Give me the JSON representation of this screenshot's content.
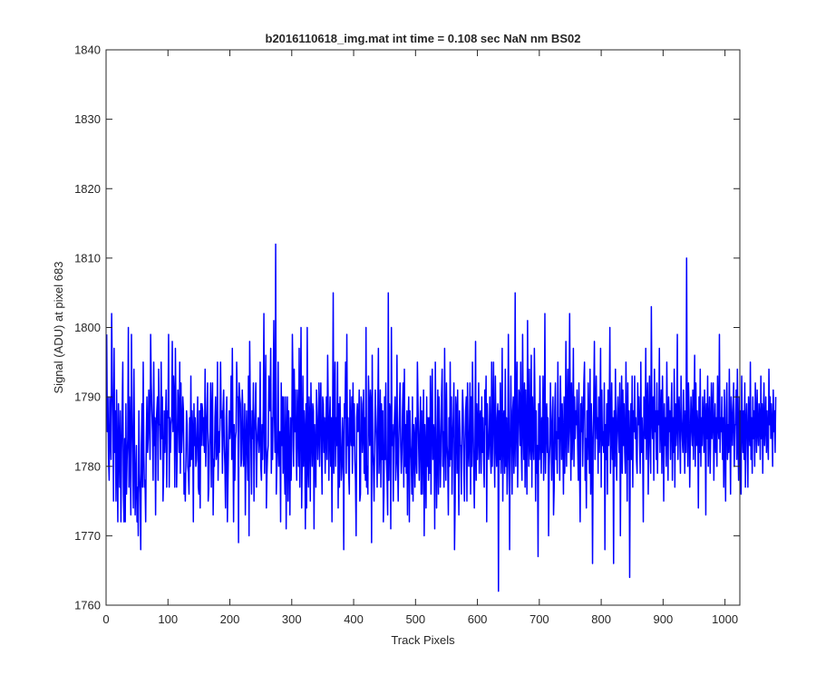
{
  "chart_data": {
    "type": "line",
    "title": "b2016110618_img.mat int time = 0.108 sec  NaN nm BS02",
    "xlabel": "Track Pixels",
    "ylabel": "Signal (ADU) at pixel 683",
    "xlim": [
      0,
      1024
    ],
    "ylim": [
      1760,
      1840
    ],
    "xticks": [
      "0",
      "100",
      "200",
      "300",
      "400",
      "500",
      "600",
      "700",
      "800",
      "900",
      "1000"
    ],
    "yticks": [
      "1760",
      "1770",
      "1780",
      "1790",
      "1800",
      "1810",
      "1820",
      "1830",
      "1840"
    ],
    "grid": false,
    "line_color": "#0000ff",
    "series": [
      {
        "x_start": 1,
        "x_step": 1,
        "values": [
          1799,
          1785,
          1790,
          1781,
          1778,
          1790,
          1785,
          1781,
          1802,
          1793,
          1787,
          1775,
          1797,
          1782,
          1788,
          1775,
          1791,
          1781,
          1772,
          1789,
          1783,
          1777,
          1788,
          1772,
          1782,
          1788,
          1795,
          1776,
          1772,
          1784,
          1772,
          1789,
          1776,
          1781,
          1784,
          1800,
          1777,
          1790,
          1784,
          1773,
          1799,
          1788,
          1782,
          1774,
          1794,
          1783,
          1773,
          1778,
          1783,
          1772,
          1777,
          1770,
          1788,
          1779,
          1776,
          1768,
          1783,
          1789,
          1777,
          1795,
          1782,
          1777,
          1778,
          1772,
          1784,
          1790,
          1782,
          1784,
          1791,
          1788,
          1781,
          1799,
          1792,
          1788,
          1785,
          1778,
          1795,
          1783,
          1787,
          1773,
          1786,
          1788,
          1790,
          1778,
          1794,
          1786,
          1786,
          1781,
          1795,
          1784,
          1790,
          1775,
          1779,
          1788,
          1782,
          1786,
          1791,
          1777,
          1788,
          1787,
          1799,
          1777,
          1787,
          1782,
          1786,
          1787,
          1798,
          1785,
          1793,
          1790,
          1777,
          1797,
          1787,
          1777,
          1783,
          1791,
          1788,
          1782,
          1795,
          1779,
          1792,
          1782,
          1785,
          1790,
          1788,
          1776,
          1779,
          1775,
          1781,
          1788,
          1786,
          1780,
          1779,
          1776,
          1787,
          1780,
          1793,
          1781,
          1788,
          1785,
          1772,
          1789,
          1783,
          1787,
          1780,
          1781,
          1786,
          1790,
          1777,
          1776,
          1788,
          1774,
          1789,
          1783,
          1789,
          1788,
          1783,
          1787,
          1782,
          1794,
          1780,
          1785,
          1788,
          1792,
          1775,
          1777,
          1783,
          1785,
          1792,
          1777,
          1788,
          1792,
          1773,
          1781,
          1780,
          1787,
          1790,
          1781,
          1782,
          1795,
          1778,
          1785,
          1782,
          1786,
          1795,
          1787,
          1788,
          1779,
          1788,
          1791,
          1783,
          1780,
          1774,
          1787,
          1790,
          1772,
          1778,
          1784,
          1788,
          1784,
          1786,
          1793,
          1781,
          1797,
          1785,
          1772,
          1786,
          1778,
          1784,
          1785,
          1795,
          1790,
          1790,
          1769,
          1792,
          1790,
          1789,
          1780,
          1781,
          1791,
          1788,
          1780,
          1781,
          1789,
          1773,
          1783,
          1788,
          1782,
          1778,
          1793,
          1770,
          1798,
          1789,
          1783,
          1776,
          1788,
          1784,
          1792,
          1775,
          1785,
          1788,
          1792,
          1777,
          1783,
          1785,
          1787,
          1782,
          1784,
          1795,
          1780,
          1778,
          1786,
          1781,
          1788,
          1802,
          1779,
          1787,
          1796,
          1774,
          1779,
          1782,
          1783,
          1793,
          1791,
          1788,
          1797,
          1779,
          1787,
          1781,
          1790,
          1801,
          1787,
          1782,
          1812,
          1776,
          1780,
          1783,
          1795,
          1780,
          1784,
          1785,
          1772,
          1792,
          1783,
          1790,
          1779,
          1790,
          1781,
          1776,
          1790,
          1771,
          1784,
          1790,
          1775,
          1788,
          1782,
          1773,
          1787,
          1778,
          1783,
          1799,
          1792,
          1780,
          1794,
          1785,
          1791,
          1783,
          1778,
          1791,
          1786,
          1780,
          1797,
          1777,
          1788,
          1800,
          1774,
          1781,
          1793,
          1780,
          1788,
          1785,
          1771,
          1789,
          1774,
          1800,
          1780,
          1777,
          1790,
          1787,
          1775,
          1792,
          1785,
          1780,
          1789,
          1788,
          1771,
          1786,
          1782,
          1777,
          1791,
          1787,
          1781,
          1785,
          1792,
          1780,
          1788,
          1792,
          1782,
          1776,
          1790,
          1789,
          1782,
          1787,
          1779,
          1785,
          1790,
          1781,
          1796,
          1788,
          1778,
          1786,
          1790,
          1780,
          1787,
          1772,
          1786,
          1805,
          1779,
          1788,
          1795,
          1780,
          1787,
          1783,
          1795,
          1774,
          1789,
          1777,
          1790,
          1784,
          1778,
          1780,
          1787,
          1783,
          1768,
          1789,
          1787,
          1795,
          1779,
          1799,
          1783,
          1787,
          1779,
          1776,
          1791,
          1785,
          1783,
          1790,
          1779,
          1792,
          1783,
          1789,
          1781,
          1778,
          1770,
          1787,
          1789,
          1785,
          1786,
          1791,
          1775,
          1776,
          1790,
          1789,
          1782,
          1785,
          1791,
          1779,
          1787,
          1778,
          1800,
          1777,
          1780,
          1776,
          1793,
          1788,
          1783,
          1791,
          1789,
          1769,
          1796,
          1782,
          1780,
          1775,
          1784,
          1791,
          1787,
          1783,
          1777,
          1788,
          1797,
          1779,
          1783,
          1791,
          1777,
          1789,
          1781,
          1788,
          1772,
          1776,
          1790,
          1781,
          1792,
          1781,
          1778,
          1773,
          1805,
          1778,
          1789,
          1788,
          1771,
          1800,
          1783,
          1786,
          1775,
          1784,
          1787,
          1790,
          1778,
          1781,
          1796,
          1781,
          1775,
          1784,
          1788,
          1792,
          1783,
          1779,
          1782,
          1788,
          1792,
          1777,
          1794,
          1780,
          1786,
          1779,
          1788,
          1773,
          1786,
          1790,
          1772,
          1788,
          1783,
          1781,
          1776,
          1790,
          1775,
          1786,
          1784,
          1777,
          1787,
          1782,
          1779,
          1795,
          1789,
          1783,
          1778,
          1785,
          1790,
          1776,
          1788,
          1776,
          1784,
          1791,
          1770,
          1786,
          1782,
          1774,
          1790,
          1780,
          1787,
          1778,
          1787,
          1779,
          1793,
          1776,
          1787,
          1794,
          1781,
          1786,
          1785,
          1771,
          1795,
          1784,
          1774,
          1782,
          1791,
          1776,
          1790,
          1785,
          1777,
          1782,
          1790,
          1794,
          1780,
          1785,
          1777,
          1797,
          1784,
          1778,
          1792,
          1783,
          1781,
          1773,
          1787,
          1780,
          1795,
          1781,
          1790,
          1776,
          1784,
          1787,
          1792,
          1768,
          1775,
          1790,
          1788,
          1779,
          1791,
          1782,
          1773,
          1788,
          1783,
          1783,
          1776,
          1785,
          1791,
          1788,
          1780,
          1775,
          1784,
          1788,
          1790,
          1775,
          1792,
          1783,
          1780,
          1785,
          1792,
          1776,
          1790,
          1780,
          1795,
          1787,
          1780,
          1774,
          1783,
          1798,
          1778,
          1789,
          1781,
          1785,
          1792,
          1779,
          1787,
          1788,
          1779,
          1790,
          1782,
          1787,
          1781,
          1777,
          1791,
          1786,
          1793,
          1772,
          1789,
          1784,
          1781,
          1784,
          1790,
          1782,
          1779,
          1795,
          1780,
          1787,
          1795,
          1783,
          1777,
          1793,
          1784,
          1780,
          1787,
          1789,
          1762,
          1788,
          1781,
          1792,
          1779,
          1784,
          1797,
          1775,
          1787,
          1788,
          1779,
          1794,
          1780,
          1787,
          1776,
          1781,
          1799,
          1785,
          1768,
          1783,
          1793,
          1785,
          1776,
          1788,
          1790,
          1779,
          1784,
          1805,
          1780,
          1788,
          1795,
          1777,
          1784,
          1791,
          1790,
          1783,
          1795,
          1782,
          1778,
          1799,
          1787,
          1781,
          1792,
          1777,
          1791,
          1784,
          1776,
          1801,
          1786,
          1780,
          1794,
          1783,
          1781,
          1796,
          1777,
          1790,
          1784,
          1781,
          1797,
          1789,
          1775,
          1788,
          1779,
          1783,
          1767,
          1789,
          1781,
          1793,
          1784,
          1779,
          1787,
          1782,
          1793,
          1778,
          1784,
          1802,
          1779,
          1786,
          1789,
          1782,
          1787,
          1770,
          1780,
          1783,
          1792,
          1786,
          1778,
          1786,
          1790,
          1773,
          1777,
          1788,
          1792,
          1781,
          1785,
          1779,
          1795,
          1784,
          1787,
          1778,
          1793,
          1788,
          1781,
          1789,
          1784,
          1776,
          1790,
          1779,
          1785,
          1798,
          1780,
          1787,
          1794,
          1782,
          1785,
          1802,
          1788,
          1778,
          1792,
          1781,
          1786,
          1797,
          1780,
          1790,
          1784,
          1788,
          1786,
          1791,
          1783,
          1778,
          1792,
          1780,
          1772,
          1789,
          1785,
          1790,
          1780,
          1786,
          1792,
          1795,
          1778,
          1784,
          1774,
          1788,
          1781,
          1792,
          1785,
          1779,
          1794,
          1776,
          1789,
          1784,
          1766,
          1783,
          1790,
          1798,
          1781,
          1788,
          1793,
          1784,
          1787,
          1779,
          1790,
          1782,
          1786,
          1797,
          1777,
          1791,
          1783,
          1785,
          1782,
          1792,
          1768,
          1786,
          1781,
          1789,
          1776,
          1791,
          1783,
          1787,
          1800,
          1779,
          1785,
          1792,
          1781,
          1787,
          1766,
          1788,
          1780,
          1794,
          1784,
          1778,
          1787,
          1790,
          1785,
          1782,
          1792,
          1770,
          1786,
          1793,
          1779,
          1791,
          1783,
          1789,
          1782,
          1779,
          1795,
          1786,
          1775,
          1792,
          1781,
          1788,
          1764,
          1784,
          1789,
          1781,
          1793,
          1777,
          1788,
          1785,
          1793,
          1784,
          1787,
          1781,
          1779,
          1792,
          1786,
          1790,
          1784,
          1779,
          1795,
          1782,
          1787,
          1783,
          1772,
          1790,
          1788,
          1784,
          1797,
          1781,
          1789,
          1792,
          1776,
          1786,
          1793,
          1783,
          1779,
          1803,
          1787,
          1784,
          1790,
          1778,
          1794,
          1785,
          1788,
          1781,
          1792,
          1779,
          1788,
          1786,
          1797,
          1782,
          1787,
          1791,
          1779,
          1793,
          1785,
          1775,
          1789,
          1783,
          1787,
          1780,
          1795,
          1786,
          1778,
          1790,
          1785,
          1788,
          1781,
          1788,
          1792,
          1778,
          1787,
          1782,
          1794,
          1777,
          1789,
          1783,
          1786,
          1799,
          1781,
          1788,
          1790,
          1784,
          1779,
          1793,
          1787,
          1784,
          1782,
          1791,
          1786,
          1779,
          1788,
          1782,
          1810,
          1786,
          1780,
          1792,
          1788,
          1777,
          1784,
          1790,
          1786,
          1783,
          1791,
          1781,
          1788,
          1796,
          1780,
          1792,
          1783,
          1788,
          1786,
          1774,
          1790,
          1782,
          1794,
          1780,
          1787,
          1783,
          1790,
          1787,
          1782,
          1791,
          1787,
          1773,
          1789,
          1784,
          1793,
          1780,
          1786,
          1790,
          1779,
          1785,
          1792,
          1784,
          1787,
          1792,
          1778,
          1785,
          1789,
          1782,
          1787,
          1780,
          1793,
          1786,
          1784,
          1799,
          1782,
          1787,
          1785,
          1790,
          1781,
          1787,
          1777,
          1791,
          1783,
          1775,
          1788,
          1792,
          1781,
          1786,
          1782,
          1794,
          1785,
          1776,
          1790,
          1787,
          1783,
          1788,
          1792,
          1780,
          1786,
          1786,
          1791,
          1781,
          1794,
          1784,
          1778,
          1790,
          1783,
          1788,
          1776,
          1793,
          1786,
          1782,
          1788,
          1781,
          1792,
          1777,
          1786,
          1789,
          1784,
          1777,
          1790,
          1786,
          1783,
          1795,
          1781,
          1787,
          1779,
          1790,
          1784,
          1788,
          1780,
          1792,
          1787,
          1782,
          1791,
          1785,
          1783,
          1789,
          1787,
          1781,
          1793,
          1784,
          1789,
          1779,
          1787,
          1792,
          1783,
          1786,
          1790,
          1782,
          1788,
          1784,
          1781,
          1794,
          1786,
          1790,
          1784,
          1789,
          1786,
          1780,
          1791,
          1785,
          1788,
          1782,
          1790
        ]
      }
    ]
  }
}
